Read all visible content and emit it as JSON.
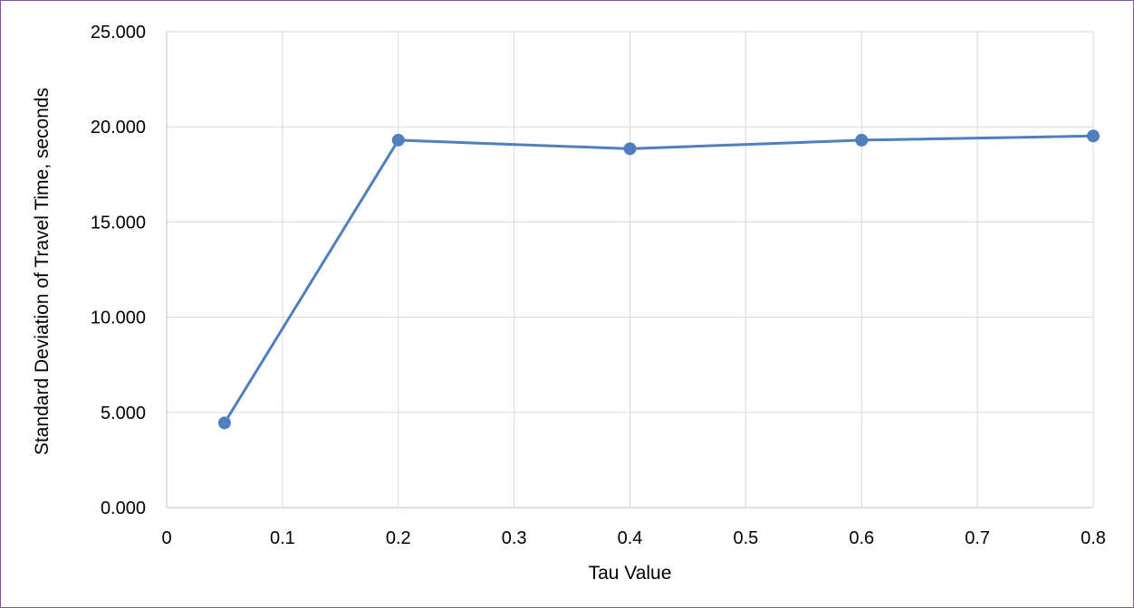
{
  "chart_data": {
    "type": "scatter",
    "title": "",
    "xlabel": "Tau Value",
    "ylabel": "Standard Deviation of Travel Time, seconds",
    "xlim": [
      0,
      0.8
    ],
    "ylim": [
      0,
      25
    ],
    "x_ticks": [
      "0",
      "0.1",
      "0.2",
      "0.3",
      "0.4",
      "0.5",
      "0.6",
      "0.7",
      "0.8"
    ],
    "y_ticks": [
      "0.000",
      "5.000",
      "10.000",
      "15.000",
      "20.000",
      "25.000"
    ],
    "grid": true,
    "legend": "none",
    "series": [
      {
        "color": "#4f7fbf",
        "x": [
          0.05,
          0.2,
          0.4,
          0.6,
          0.8
        ],
        "y": [
          4.45,
          19.3,
          18.85,
          19.3,
          19.52
        ]
      }
    ]
  }
}
